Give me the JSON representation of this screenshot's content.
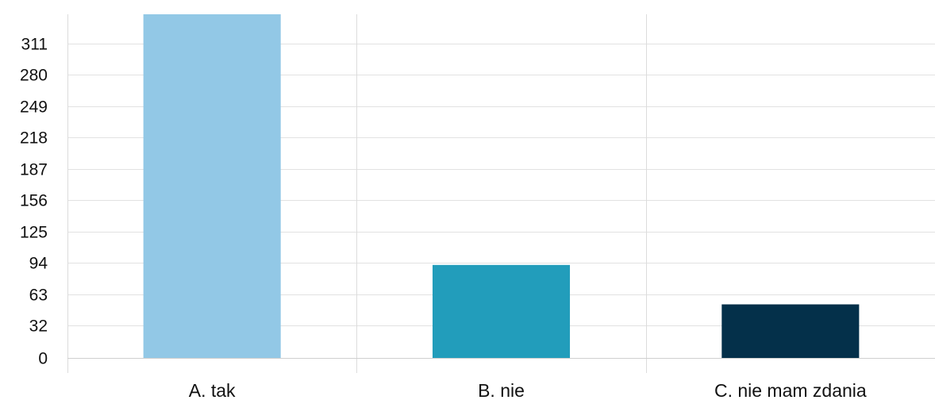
{
  "chart_data": {
    "type": "bar",
    "categories": [
      "A. tak",
      "B. nie",
      "C. nie mam zdania"
    ],
    "values": [
      340,
      92,
      53
    ],
    "colors": [
      "#92c8e6",
      "#229dbb",
      "#04304a"
    ],
    "ylim": [
      0,
      340
    ],
    "yticks": [
      0,
      32,
      63,
      94,
      125,
      156,
      187,
      218,
      249,
      280,
      311
    ],
    "grid": true,
    "title": "",
    "xlabel": "",
    "ylabel": ""
  }
}
